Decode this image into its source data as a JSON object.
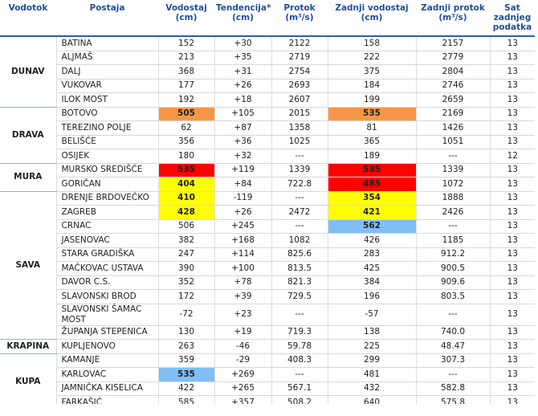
{
  "header": [
    {
      "label": "Vodotok",
      "unit": null
    },
    {
      "label": "Postaja",
      "unit": null
    },
    {
      "label": "Vodostaj",
      "unit": "(cm)"
    },
    {
      "label": "Tendencija*",
      "unit": "(cm)"
    },
    {
      "label": "Protok",
      "unit": "(m³/s)"
    },
    {
      "label": "Zadnji vodostaj",
      "unit": "(cm)"
    },
    {
      "label": "Zadnji protok",
      "unit": "(m³/s)"
    },
    {
      "label": "Sat zadnjeg podatka",
      "unit": null
    }
  ],
  "groups": [
    {
      "river": "DUNAV",
      "rows": [
        {
          "station": "BATINA",
          "values": [
            "152",
            "+30",
            "2122",
            "158",
            "2157",
            "13"
          ]
        },
        {
          "station": "ALJMAŠ",
          "values": [
            "213",
            "+35",
            "2719",
            "222",
            "2779",
            "13"
          ]
        },
        {
          "station": "DALJ",
          "values": [
            "368",
            "+31",
            "2754",
            "375",
            "2804",
            "13"
          ]
        },
        {
          "station": "VUKOVAR",
          "values": [
            "177",
            "+26",
            "2693",
            "184",
            "2746",
            "13"
          ]
        },
        {
          "station": "ILOK MOST",
          "values": [
            "192",
            "+18",
            "2607",
            "199",
            "2659",
            "13"
          ]
        }
      ]
    },
    {
      "river": "DRAVA",
      "rows": [
        {
          "station": "BOTOVO",
          "values": [
            "505",
            "+105",
            "2015",
            "535",
            "2169",
            "13"
          ],
          "highlights": [
            {
              "col": 0,
              "color": "#f79646"
            },
            {
              "col": 3,
              "color": "#f79646"
            }
          ]
        },
        {
          "station": "TEREZINO POLJE",
          "values": [
            "62",
            "+87",
            "1358",
            "81",
            "1426",
            "13"
          ]
        },
        {
          "station": "BELIŠĆE",
          "values": [
            "356",
            "+36",
            "1025",
            "365",
            "1051",
            "13"
          ]
        },
        {
          "station": "OSIJEK",
          "values": [
            "180",
            "+32",
            "---",
            "189",
            "---",
            "12"
          ]
        }
      ]
    },
    {
      "river": "MURA",
      "rows": [
        {
          "station": "MURSKO SREDIŠĆE",
          "values": [
            "535",
            "+119",
            "1339",
            "535",
            "1339",
            "13"
          ],
          "highlights": [
            {
              "col": 0,
              "color": "#ff0000"
            },
            {
              "col": 3,
              "color": "#ff0000"
            }
          ]
        },
        {
          "station": "GORIČAN",
          "values": [
            "404",
            "+84",
            "722.8",
            "485",
            "1072",
            "13"
          ],
          "highlights": [
            {
              "col": 0,
              "color": "#ffff00"
            },
            {
              "col": 3,
              "color": "#ff0000"
            }
          ]
        }
      ]
    },
    {
      "river": "SAVA",
      "rows": [
        {
          "station": "DRENJE BRDOVEČKO",
          "values": [
            "410",
            "-119",
            "---",
            "354",
            "1888",
            "13"
          ],
          "highlights": [
            {
              "col": 0,
              "color": "#ffff00"
            },
            {
              "col": 3,
              "color": "#ffff00"
            }
          ]
        },
        {
          "station": "ZAGREB",
          "values": [
            "428",
            "+26",
            "2472",
            "421",
            "2426",
            "13"
          ],
          "highlights": [
            {
              "col": 0,
              "color": "#ffff00"
            },
            {
              "col": 3,
              "color": "#ffff00"
            }
          ]
        },
        {
          "station": "CRNAC",
          "values": [
            "506",
            "+245",
            "---",
            "562",
            "---",
            "13"
          ],
          "highlights": [
            {
              "col": 3,
              "color": "#80bff5"
            }
          ]
        },
        {
          "station": "JASENOVAC",
          "values": [
            "382",
            "+168",
            "1082",
            "426",
            "1185",
            "13"
          ]
        },
        {
          "station": "STARA GRADIŠKA",
          "values": [
            "247",
            "+114",
            "825.6",
            "283",
            "912.2",
            "13"
          ]
        },
        {
          "station": "MAČKOVAC USTAVA",
          "values": [
            "390",
            "+100",
            "813.5",
            "425",
            "900.5",
            "13"
          ]
        },
        {
          "station": "DAVOR C.S.",
          "values": [
            "352",
            "+78",
            "821.3",
            "384",
            "909.6",
            "13"
          ]
        },
        {
          "station": "SLAVONSKI BROD",
          "values": [
            "172",
            "+39",
            "729.5",
            "196",
            "803.5",
            "13"
          ]
        },
        {
          "station": "SLAVONSKI ŠAMAC MOST",
          "values": [
            "-72",
            "+23",
            "---",
            "-57",
            "---",
            "13"
          ]
        },
        {
          "station": "ŽUPANJA STEPENICA",
          "values": [
            "130",
            "+19",
            "719.3",
            "138",
            "740.0",
            "13"
          ]
        }
      ]
    },
    {
      "river": "KRAPINA",
      "rows": [
        {
          "station": "KUPLJENOVO",
          "values": [
            "263",
            "-46",
            "59.78",
            "225",
            "48.47",
            "13"
          ]
        }
      ]
    },
    {
      "river": "KUPA",
      "rows": [
        {
          "station": "KAMANJE",
          "values": [
            "359",
            "-29",
            "408.3",
            "299",
            "307.3",
            "13"
          ]
        },
        {
          "station": "KARLOVAC",
          "values": [
            "535",
            "+269",
            "---",
            "481",
            "---",
            "13"
          ],
          "highlights": [
            {
              "col": 0,
              "color": "#80bff5"
            }
          ]
        },
        {
          "station": "JAMNIČKA KISELICA",
          "values": [
            "422",
            "+265",
            "567.1",
            "432",
            "582.8",
            "13"
          ]
        },
        {
          "station": "FARKAŠIĆ",
          "values": [
            "585",
            "+357",
            "508.2",
            "640",
            "575.8",
            "13"
          ]
        }
      ]
    }
  ]
}
